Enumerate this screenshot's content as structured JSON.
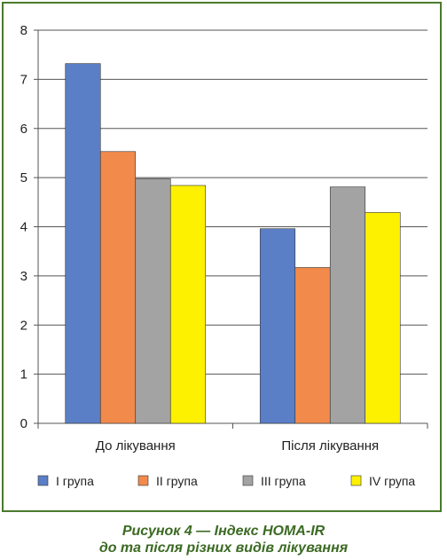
{
  "chart_data": {
    "type": "bar",
    "categories": [
      "До лікування",
      "Після лікування"
    ],
    "series": [
      {
        "name": "I група",
        "values": [
          7.32,
          3.96
        ],
        "color": "#5b7fc7"
      },
      {
        "name": "II група",
        "values": [
          5.53,
          3.17
        ],
        "color": "#f28a4c"
      },
      {
        "name": "III група",
        "values": [
          4.98,
          4.81
        ],
        "color": "#a3a3a3"
      },
      {
        "name": "IV група",
        "values": [
          4.84,
          4.29
        ],
        "color": "#fdf100"
      }
    ],
    "ylim": [
      0,
      8
    ],
    "yticks": [
      "0",
      "1",
      "2",
      "3",
      "4",
      "5",
      "6",
      "7",
      "8"
    ],
    "grid": true,
    "legend_position": "bottom"
  },
  "caption": {
    "line1": "Рисунок 4 — Індекс HOMA-IR",
    "line2": "до та після різних видів лікування"
  }
}
